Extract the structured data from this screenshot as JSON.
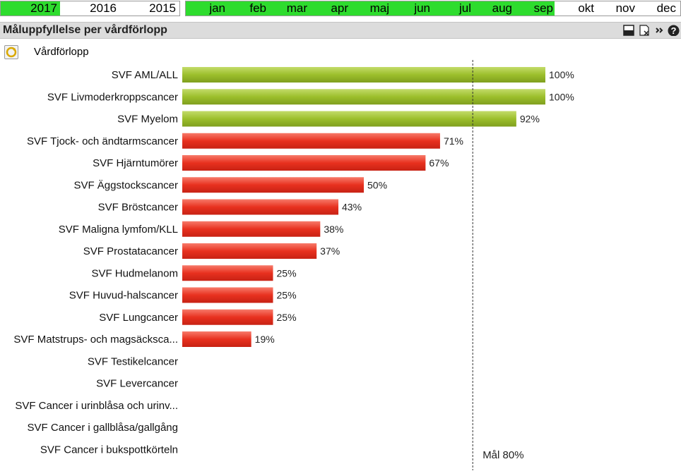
{
  "filters": {
    "years": [
      {
        "label": "2017",
        "selected": true
      },
      {
        "label": "2016",
        "selected": false
      },
      {
        "label": "2015",
        "selected": false
      }
    ],
    "months": [
      {
        "label": "jan",
        "selected": true
      },
      {
        "label": "feb",
        "selected": true
      },
      {
        "label": "mar",
        "selected": true
      },
      {
        "label": "apr",
        "selected": true
      },
      {
        "label": "maj",
        "selected": true
      },
      {
        "label": "jun",
        "selected": true
      },
      {
        "label": "jul",
        "selected": true
      },
      {
        "label": "aug",
        "selected": true
      },
      {
        "label": "sep",
        "selected": true
      },
      {
        "label": "okt",
        "selected": false
      },
      {
        "label": "nov",
        "selected": false
      },
      {
        "label": "dec",
        "selected": false
      }
    ]
  },
  "panel": {
    "title": "Måluppfyllelse per vårdförlopp",
    "dimension_label": "Vårdförlopp",
    "icons": [
      "print-icon",
      "export-excel-icon",
      "more-icon",
      "help-icon"
    ]
  },
  "colors": {
    "above_target": "#9cbf2c",
    "below_target": "#e8311f",
    "selected_filter": "#2edc2e"
  },
  "chart_data": {
    "type": "bar",
    "orientation": "horizontal",
    "title": "",
    "xlabel": "",
    "ylabel": "",
    "xlim": [
      0,
      100
    ],
    "target": {
      "value": 80,
      "label": "Mål 80%"
    },
    "categories": [
      "SVF AML/ALL",
      "SVF Livmoderkroppscancer",
      "SVF Myelom",
      "SVF Tjock- och ändtarmscancer",
      "SVF Hjärntumörer",
      "SVF Äggstockscancer",
      "SVF Bröstcancer",
      "SVF Maligna lymfom/KLL",
      "SVF Prostatacancer",
      "SVF Hudmelanom",
      "SVF Huvud-halscancer",
      "SVF Lungcancer",
      "SVF Matstrups- och magsäcksca...",
      "SVF Testikelcancer",
      "SVF Levercancer",
      "SVF Cancer i urinblåsa och urinv...",
      "SVF Cancer i gallblåsa/gallgång",
      "SVF Cancer i bukspottkörteln"
    ],
    "values": [
      100,
      100,
      92,
      71,
      67,
      50,
      43,
      38,
      37,
      25,
      25,
      25,
      19,
      null,
      null,
      null,
      null,
      null
    ],
    "value_labels": [
      "100%",
      "100%",
      "92%",
      "71%",
      "67%",
      "50%",
      "43%",
      "38%",
      "37%",
      "25%",
      "25%",
      "25%",
      "19%",
      "",
      "",
      "",
      "",
      ""
    ]
  }
}
